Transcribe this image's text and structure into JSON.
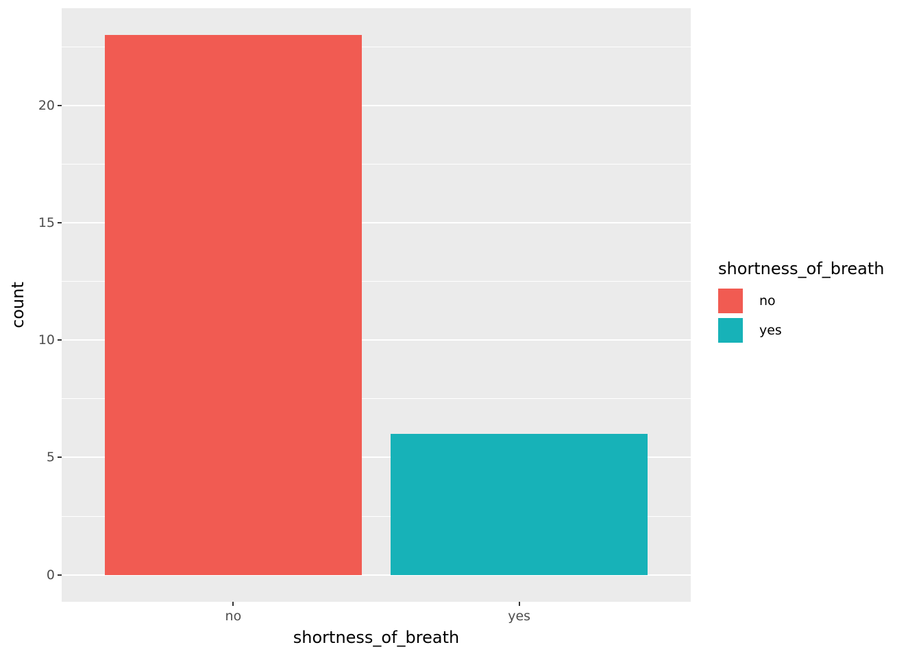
{
  "chart_data": {
    "type": "bar",
    "title": "",
    "xlabel": "shortness_of_breath",
    "ylabel": "count",
    "categories": [
      "no",
      "yes"
    ],
    "values": [
      23,
      6
    ],
    "bar_colors": [
      "#F15B52",
      "#17B2B8"
    ],
    "ylim": [
      0,
      23
    ],
    "y_major_ticks": [
      0,
      5,
      10,
      15,
      20
    ],
    "y_minor_ticks": [
      2.5,
      7.5,
      12.5,
      17.5,
      22.5
    ],
    "expand_mult": 0.05,
    "bar_width": 0.9,
    "grid": "white major and minor horizontal gridlines on gray panel",
    "panel_background": "#EBEBEB",
    "legend": {
      "title": "shortness_of_breath",
      "position": "right",
      "entries": [
        {
          "label": "no",
          "color": "#F15B52"
        },
        {
          "label": "yes",
          "color": "#17B2B8"
        }
      ]
    }
  }
}
